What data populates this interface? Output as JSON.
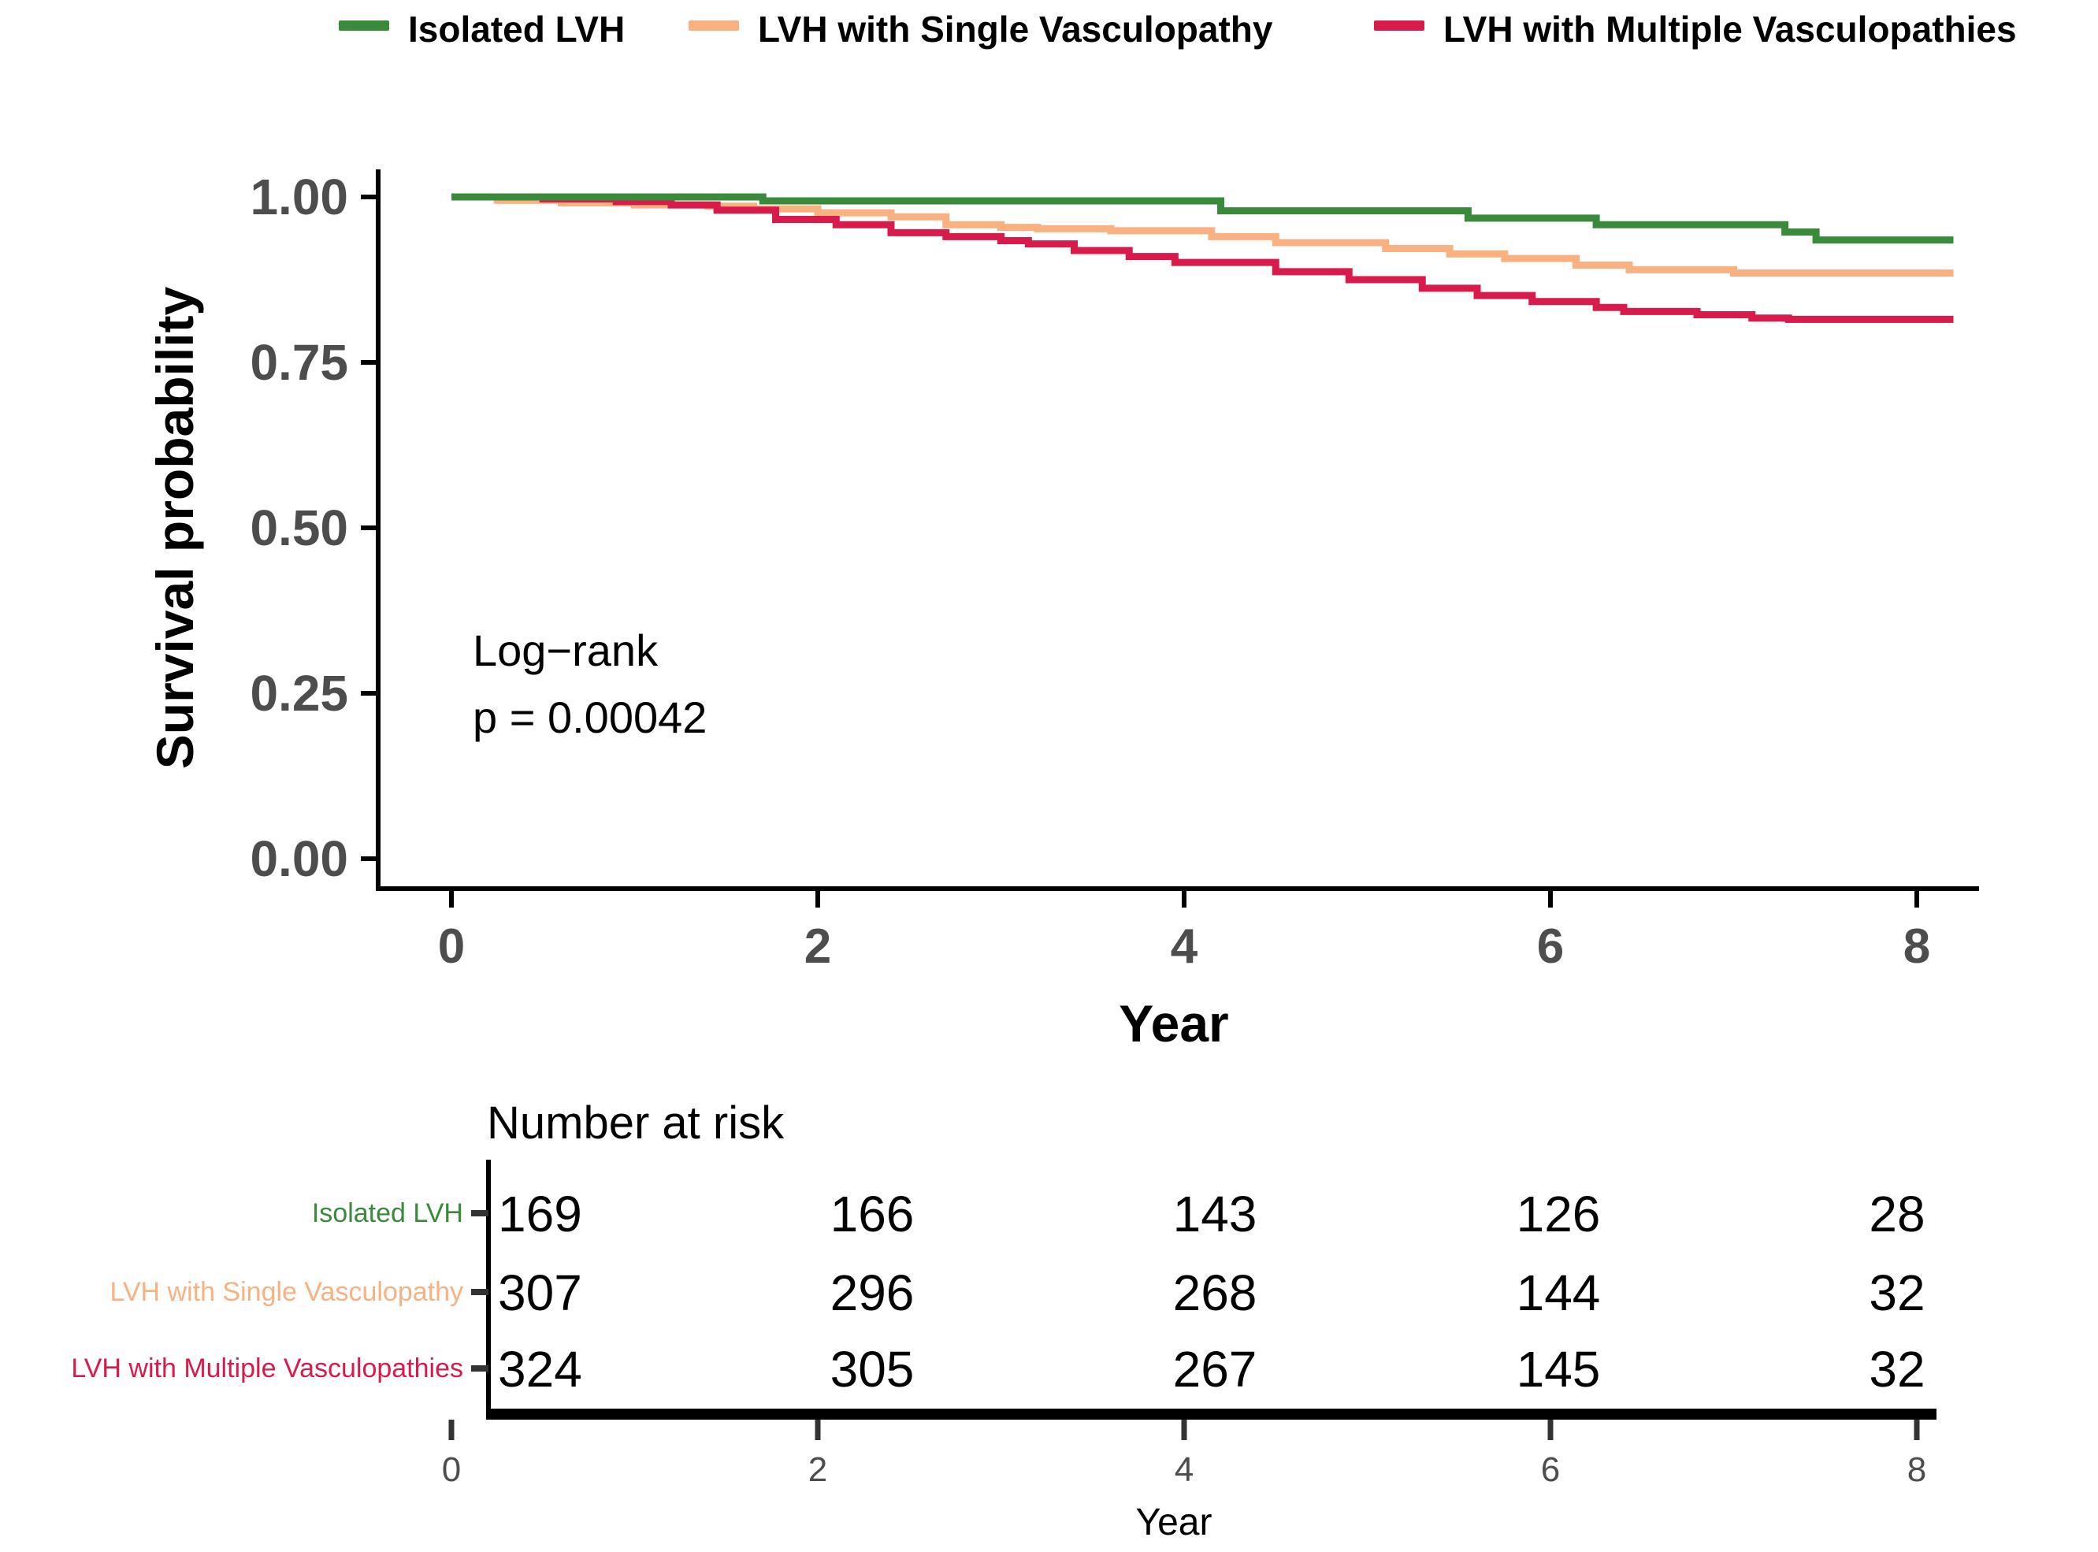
{
  "legend": {
    "items": [
      {
        "label": "Isolated LVH"
      },
      {
        "label": "LVH with Single Vasculopathy"
      },
      {
        "label": "LVH with Multiple Vasculopathies"
      }
    ]
  },
  "chart_data": {
    "type": "line",
    "subtype": "kaplan-meier-step",
    "title": "",
    "xlabel": "Year",
    "ylabel": "Survival probability",
    "xlim": [
      -0.4,
      8.3
    ],
    "ylim": [
      0.0,
      1.0
    ],
    "x_ticks": [
      "0",
      "2",
      "4",
      "6",
      "8"
    ],
    "y_ticks": [
      "1.00",
      "0.75",
      "0.50",
      "0.25",
      "0.00"
    ],
    "grid": "off",
    "legend_position": "top",
    "annotation": {
      "line1": "Log−rank",
      "line2": "p = 0.00042"
    },
    "series": [
      {
        "name": "Isolated LVH",
        "color": "#3a8a3c",
        "steps": [
          [
            0,
            1.0
          ],
          [
            1.7,
            0.994
          ],
          [
            4.2,
            0.979
          ],
          [
            5.55,
            0.968
          ],
          [
            6.25,
            0.958
          ],
          [
            7.28,
            0.947
          ],
          [
            7.45,
            0.935
          ],
          [
            8.2,
            0.935
          ]
        ]
      },
      {
        "name": "LVH with Single Vasculopathy",
        "color": "#f9b181",
        "steps": [
          [
            0,
            1.0
          ],
          [
            0.25,
            0.995
          ],
          [
            0.6,
            0.991
          ],
          [
            1.0,
            0.988
          ],
          [
            1.4,
            0.986
          ],
          [
            1.65,
            0.982
          ],
          [
            2.0,
            0.976
          ],
          [
            2.4,
            0.97
          ],
          [
            2.7,
            0.958
          ],
          [
            3.0,
            0.954
          ],
          [
            3.2,
            0.952
          ],
          [
            3.6,
            0.949
          ],
          [
            4.15,
            0.94
          ],
          [
            4.5,
            0.931
          ],
          [
            5.1,
            0.922
          ],
          [
            5.45,
            0.914
          ],
          [
            5.75,
            0.907
          ],
          [
            6.14,
            0.897
          ],
          [
            6.43,
            0.89
          ],
          [
            7.0,
            0.885
          ],
          [
            8.2,
            0.885
          ]
        ]
      },
      {
        "name": "LVH with Multiple Vasculopathies",
        "color": "#d81b4b",
        "steps": [
          [
            0,
            1.0
          ],
          [
            0.5,
            0.997
          ],
          [
            0.9,
            0.993
          ],
          [
            1.2,
            0.988
          ],
          [
            1.45,
            0.98
          ],
          [
            1.77,
            0.966
          ],
          [
            2.1,
            0.958
          ],
          [
            2.4,
            0.946
          ],
          [
            2.7,
            0.94
          ],
          [
            3.0,
            0.934
          ],
          [
            3.15,
            0.929
          ],
          [
            3.4,
            0.919
          ],
          [
            3.7,
            0.91
          ],
          [
            3.95,
            0.901
          ],
          [
            4.5,
            0.887
          ],
          [
            4.9,
            0.875
          ],
          [
            5.3,
            0.862
          ],
          [
            5.6,
            0.851
          ],
          [
            5.9,
            0.842
          ],
          [
            6.25,
            0.833
          ],
          [
            6.4,
            0.827
          ],
          [
            6.8,
            0.822
          ],
          [
            7.1,
            0.817
          ],
          [
            7.3,
            0.815
          ],
          [
            8.2,
            0.815
          ]
        ]
      }
    ],
    "risk_table": {
      "title": "Number at risk",
      "xlabel": "Year",
      "time_points": [
        "0",
        "2",
        "4",
        "6",
        "8"
      ],
      "rows": [
        {
          "label": "Isolated LVH",
          "color": "#3a8a3c",
          "values": [
            "169",
            "166",
            "143",
            "126",
            "28"
          ]
        },
        {
          "label": "LVH with Single Vasculopathy",
          "color": "#f9b181",
          "values": [
            "307",
            "296",
            "268",
            "144",
            "32"
          ]
        },
        {
          "label": "LVH with Multiple Vasculopathies",
          "color": "#d81b4b",
          "values": [
            "324",
            "305",
            "267",
            "145",
            "32"
          ]
        }
      ]
    }
  }
}
